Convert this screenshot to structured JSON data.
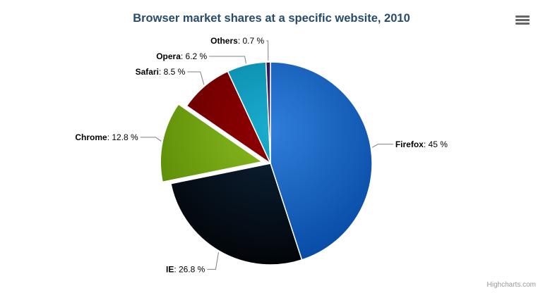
{
  "header": {
    "title": "Browser market shares at a specific website, 2010"
  },
  "credits": {
    "text": "Highcharts.com"
  },
  "colors": {
    "background": "#ffffff",
    "title": "#274b6d",
    "label_text": "#000000",
    "connector": "#808080",
    "slice_border": "#ffffff",
    "credits": "#999999",
    "menu_icon": "#666666"
  },
  "chart_data": {
    "type": "pie",
    "title": "Browser market shares at a specific website, 2010",
    "legend": "none",
    "label_format": "{name}: {value} %",
    "points": [
      {
        "name": "Firefox",
        "value": 45,
        "display": "45 %",
        "color": "#2f7ed8",
        "sliced": false
      },
      {
        "name": "IE",
        "value": 26.8,
        "display": "26.8 %",
        "color": "#0d233a",
        "sliced": false
      },
      {
        "name": "Chrome",
        "value": 12.8,
        "display": "12.8 %",
        "color": "#8bbc21",
        "sliced": true
      },
      {
        "name": "Safari",
        "value": 8.5,
        "display": "8.5 %",
        "color": "#910000",
        "sliced": false
      },
      {
        "name": "Opera",
        "value": 6.2,
        "display": "6.2 %",
        "color": "#1aadce",
        "sliced": false
      },
      {
        "name": "Others",
        "value": 0.7,
        "display": "0.7 %",
        "color": "#492970",
        "sliced": false
      }
    ]
  }
}
